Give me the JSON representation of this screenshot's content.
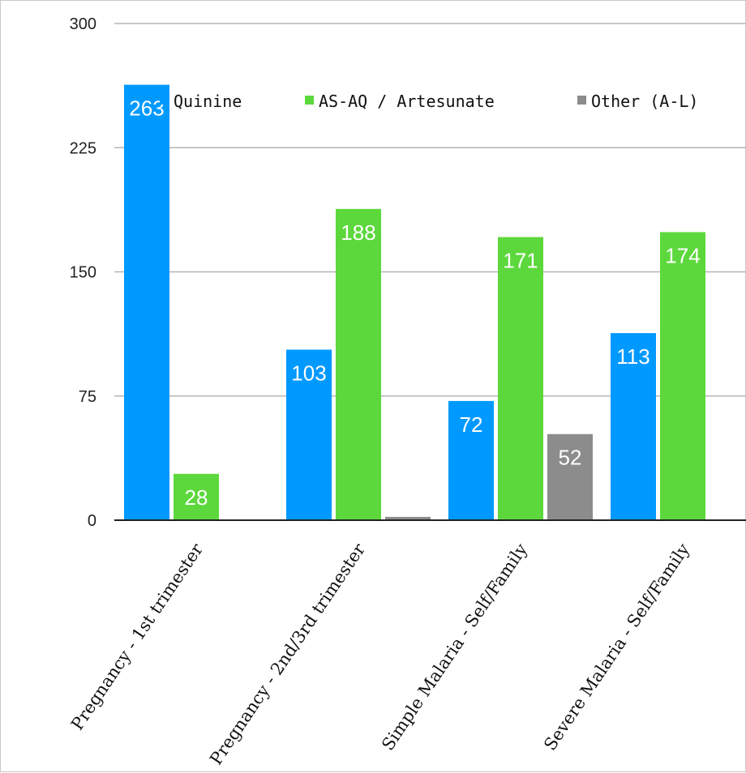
{
  "chart_data": {
    "type": "bar",
    "categories": [
      "Pregnancy - 1st trimester",
      "Pregnancy - 2nd/3rd trimester",
      "Simple Malaria - Self/Family",
      "Severe Malaria - Self/Family"
    ],
    "series": [
      {
        "name": "Quinine",
        "color": "#0099ff",
        "values": [
          263,
          103,
          72,
          113
        ],
        "labels": [
          "263",
          "103",
          "72",
          "113"
        ]
      },
      {
        "name": "AS-AQ / Artesunate",
        "color": "#5cd83c",
        "values": [
          28,
          188,
          171,
          174
        ],
        "labels": [
          "28",
          "188",
          "171",
          "174"
        ]
      },
      {
        "name": "Other (A-L)",
        "color": "#8c8c8c",
        "values": [
          0,
          2,
          52,
          0
        ],
        "labels": [
          "",
          "",
          "52",
          ""
        ]
      }
    ],
    "ylim": [
      0,
      300
    ],
    "yticks": [
      "0",
      "75",
      "150",
      "225",
      "300"
    ],
    "grid": true,
    "legend_position": "top"
  }
}
